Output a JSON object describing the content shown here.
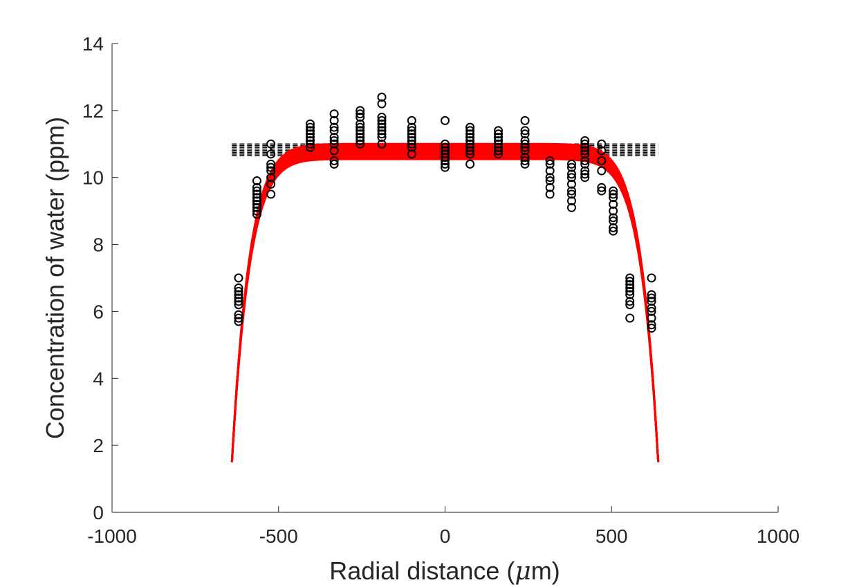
{
  "chart_data": {
    "type": "scatter",
    "title": "",
    "xlabel": "Radial distance (",
    "xlabel_symbol": "μ",
    "xlabel_suffix": "m)",
    "ylabel": "Concentration of water (ppm)",
    "xlim": [
      -1000,
      1000
    ],
    "ylim": [
      0,
      14
    ],
    "xticks": [
      -1000,
      -500,
      0,
      500,
      1000
    ],
    "xtick_labels": [
      "-1000",
      "-500",
      "0",
      "500",
      "1000"
    ],
    "yticks": [
      0,
      2,
      4,
      6,
      8,
      10,
      12,
      14
    ],
    "ytick_labels": [
      "0",
      "2",
      "4",
      "6",
      "8",
      "10",
      "12",
      "14"
    ],
    "grid": false,
    "legend": "none",
    "colors": {
      "fit": "#ff0000",
      "data": "#000000",
      "axis": "#262626"
    },
    "observations": [
      {
        "x": -620,
        "y": [
          5.7,
          5.8,
          5.9,
          6.2,
          6.3,
          6.4,
          6.5,
          6.6,
          6.7,
          7.0
        ]
      },
      {
        "x": -565,
        "y": [
          8.9,
          9.0,
          9.1,
          9.2,
          9.3,
          9.4,
          9.5,
          9.6,
          9.7,
          9.9
        ]
      },
      {
        "x": -523,
        "y": [
          9.5,
          9.8,
          10.0,
          10.2,
          10.3,
          10.4,
          10.7,
          11.0
        ]
      },
      {
        "x": -405,
        "y": [
          10.9,
          11.0,
          11.1,
          11.2,
          11.3,
          11.4,
          11.5,
          11.6
        ]
      },
      {
        "x": -333,
        "y": [
          10.4,
          10.5,
          10.8,
          11.0,
          11.1,
          11.2,
          11.4,
          11.5,
          11.7,
          11.9
        ]
      },
      {
        "x": -255,
        "y": [
          11.0,
          11.1,
          11.2,
          11.3,
          11.4,
          11.5,
          11.6,
          11.8,
          11.9,
          12.0
        ]
      },
      {
        "x": -190,
        "y": [
          11.0,
          11.2,
          11.3,
          11.4,
          11.5,
          11.6,
          11.7,
          11.8,
          12.2,
          12.4
        ]
      },
      {
        "x": -100,
        "y": [
          10.7,
          10.9,
          11.0,
          11.1,
          11.2,
          11.3,
          11.4,
          11.5,
          11.7
        ]
      },
      {
        "x": 0,
        "y": [
          10.3,
          10.4,
          10.5,
          10.6,
          10.7,
          10.8,
          10.9,
          11.0,
          11.7
        ]
      },
      {
        "x": 75,
        "y": [
          10.4,
          10.7,
          10.8,
          10.9,
          11.0,
          11.1,
          11.2,
          11.3,
          11.4,
          11.5
        ]
      },
      {
        "x": 160,
        "y": [
          10.7,
          10.8,
          10.9,
          11.0,
          11.1,
          11.2,
          11.3,
          11.4
        ]
      },
      {
        "x": 240,
        "y": [
          10.4,
          10.5,
          10.6,
          10.8,
          10.9,
          11.0,
          11.1,
          11.3,
          11.4,
          11.7
        ]
      },
      {
        "x": 315,
        "y": [
          9.5,
          9.7,
          9.9,
          10.0,
          10.2,
          10.4,
          10.5
        ]
      },
      {
        "x": 380,
        "y": [
          9.1,
          9.3,
          9.5,
          9.6,
          9.8,
          10.0,
          10.1,
          10.3,
          10.4
        ]
      },
      {
        "x": 420,
        "y": [
          10.0,
          10.1,
          10.2,
          10.4,
          10.5,
          10.7,
          10.8,
          10.9,
          11.0,
          11.1
        ]
      },
      {
        "x": 470,
        "y": [
          9.6,
          9.7,
          10.2,
          10.5,
          10.8,
          11.0
        ]
      },
      {
        "x": 505,
        "y": [
          8.4,
          8.5,
          8.7,
          8.8,
          9.0,
          9.2,
          9.4,
          9.5,
          9.6
        ]
      },
      {
        "x": 555,
        "y": [
          5.8,
          6.2,
          6.3,
          6.5,
          6.6,
          6.7,
          6.8,
          6.9,
          7.0
        ]
      },
      {
        "x": 620,
        "y": [
          5.5,
          5.6,
          5.8,
          6.0,
          6.1,
          6.3,
          6.4,
          6.5,
          7.0
        ]
      }
    ],
    "fit_curves": {
      "color": "red",
      "x_range": [
        -640,
        640
      ],
      "edge_value": 1.5,
      "plateau_values": [
        10.55,
        10.6,
        10.65,
        10.7,
        10.75,
        10.8,
        10.85,
        10.9,
        10.95,
        11.0
      ]
    },
    "reference_lines": {
      "style": "dashed",
      "color": "black",
      "x_range": [
        -640,
        640
      ],
      "y_values": [
        10.65,
        10.7,
        10.75,
        10.8,
        10.85,
        10.9,
        10.95,
        11.0
      ]
    }
  }
}
